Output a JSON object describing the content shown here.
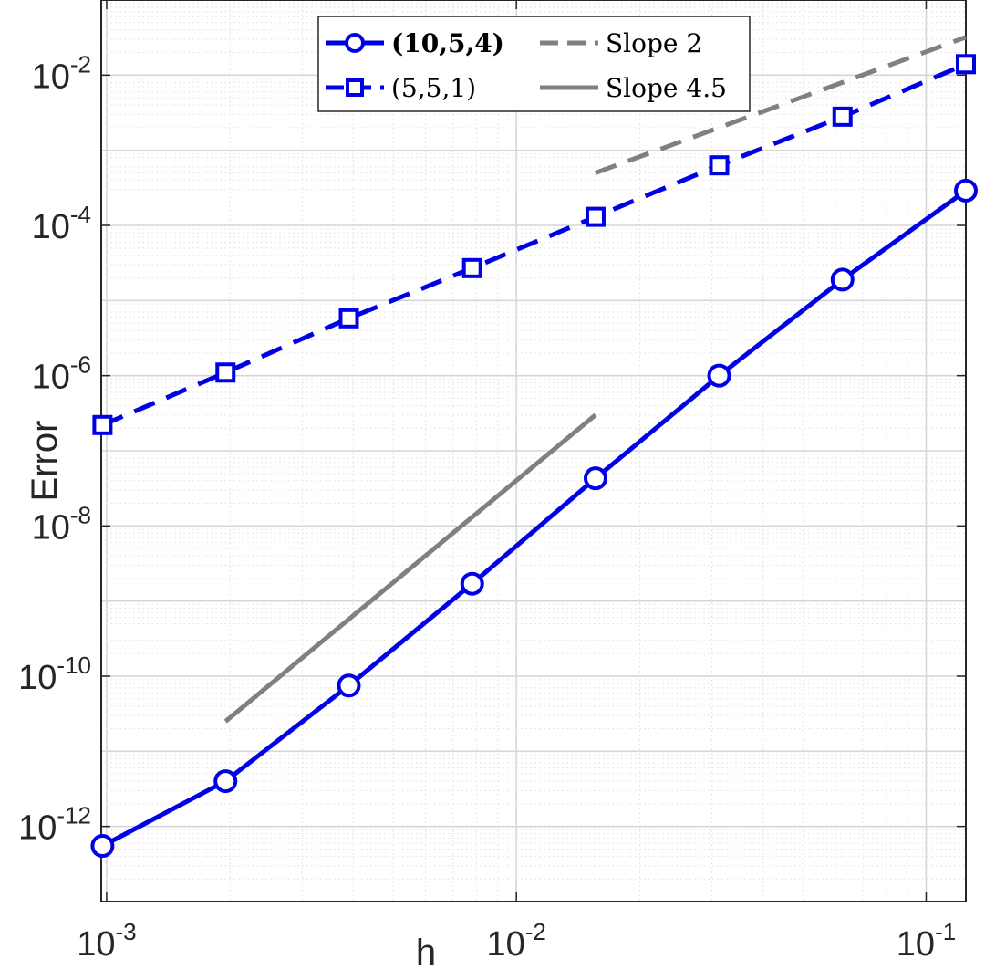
{
  "chart_data": {
    "type": "line",
    "xscale": "log",
    "yscale": "log",
    "xlabel": "h",
    "ylabel": "Error",
    "xlim": [
      0.00097,
      0.125
    ],
    "ylim": [
      1e-13,
      0.1
    ],
    "grid": true,
    "minor_grid": true,
    "legend_position": "top",
    "x_ticks": [
      {
        "value": 0.001,
        "base": "10",
        "exp": "-3"
      },
      {
        "value": 0.01,
        "base": "10",
        "exp": "-2"
      },
      {
        "value": 0.1,
        "base": "10",
        "exp": "-1"
      }
    ],
    "y_ticks": [
      {
        "value": 1e-12,
        "base": "10",
        "exp": "-12"
      },
      {
        "value": 1e-10,
        "base": "10",
        "exp": "-10"
      },
      {
        "value": 1e-08,
        "base": "10",
        "exp": "-8"
      },
      {
        "value": 1e-06,
        "base": "10",
        "exp": "-6"
      },
      {
        "value": 0.0001,
        "base": "10",
        "exp": "-4"
      },
      {
        "value": 0.01,
        "base": "10",
        "exp": "-2"
      }
    ],
    "series": [
      {
        "name": "(10,5,4)",
        "bold": true,
        "color": "#0000e6",
        "dash": "solid",
        "marker": "circle",
        "x": [
          0.000977,
          0.00195,
          0.0039,
          0.0078,
          0.0156,
          0.03125,
          0.0625,
          0.125
        ],
        "y": [
          5.5e-13,
          4e-12,
          7.5e-11,
          1.7e-09,
          4.3e-08,
          1e-06,
          1.9e-05,
          0.00029
        ]
      },
      {
        "name": "(5,5,1)",
        "bold": false,
        "color": "#0000e6",
        "dash": "dashed",
        "marker": "square",
        "x": [
          0.000977,
          0.00195,
          0.0039,
          0.0078,
          0.0156,
          0.03125,
          0.0625,
          0.125
        ],
        "y": [
          2.2e-07,
          1.1e-06,
          5.8e-06,
          2.7e-05,
          0.00013,
          0.00063,
          0.0028,
          0.014
        ]
      },
      {
        "name": "Slope 2",
        "bold": false,
        "color": "#808080",
        "dash": "dashed",
        "marker": "none",
        "x": [
          0.0156,
          0.125
        ],
        "y": [
          0.0005,
          0.032
        ]
      },
      {
        "name": "Slope 4.5",
        "bold": false,
        "color": "#808080",
        "dash": "solid",
        "marker": "none",
        "x": [
          0.00195,
          0.0156
        ],
        "y": [
          2.5e-11,
          3e-07
        ]
      }
    ]
  }
}
